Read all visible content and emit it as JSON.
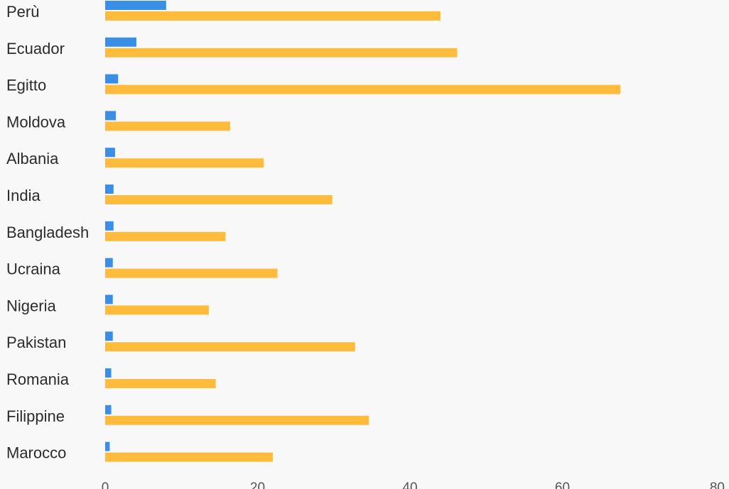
{
  "chart_data": {
    "type": "bar",
    "orientation": "horizontal",
    "categories": [
      "Perù",
      "Ecuador",
      "Egitto",
      "Moldova",
      "Albania",
      "India",
      "Bangladesh",
      "Ucraina",
      "Nigeria",
      "Pakistan",
      "Romania",
      "Filippine",
      "Marocco"
    ],
    "series": [
      {
        "values": [
          8.0,
          4.1,
          1.7,
          1.4,
          1.3,
          1.1,
          1.1,
          1.0,
          1.0,
          1.0,
          0.8,
          0.8,
          0.6
        ],
        "color": "#3a8ee6"
      },
      {
        "values": [
          44.0,
          46.2,
          67.6,
          16.4,
          20.8,
          29.8,
          15.8,
          22.6,
          13.6,
          32.8,
          14.5,
          34.6,
          22.0
        ],
        "color": "#ffbb3b"
      }
    ],
    "xlim": [
      0,
      80
    ],
    "xticks": [
      "0",
      "20",
      "40",
      "60",
      "80"
    ],
    "grid": false,
    "legend": "none"
  }
}
